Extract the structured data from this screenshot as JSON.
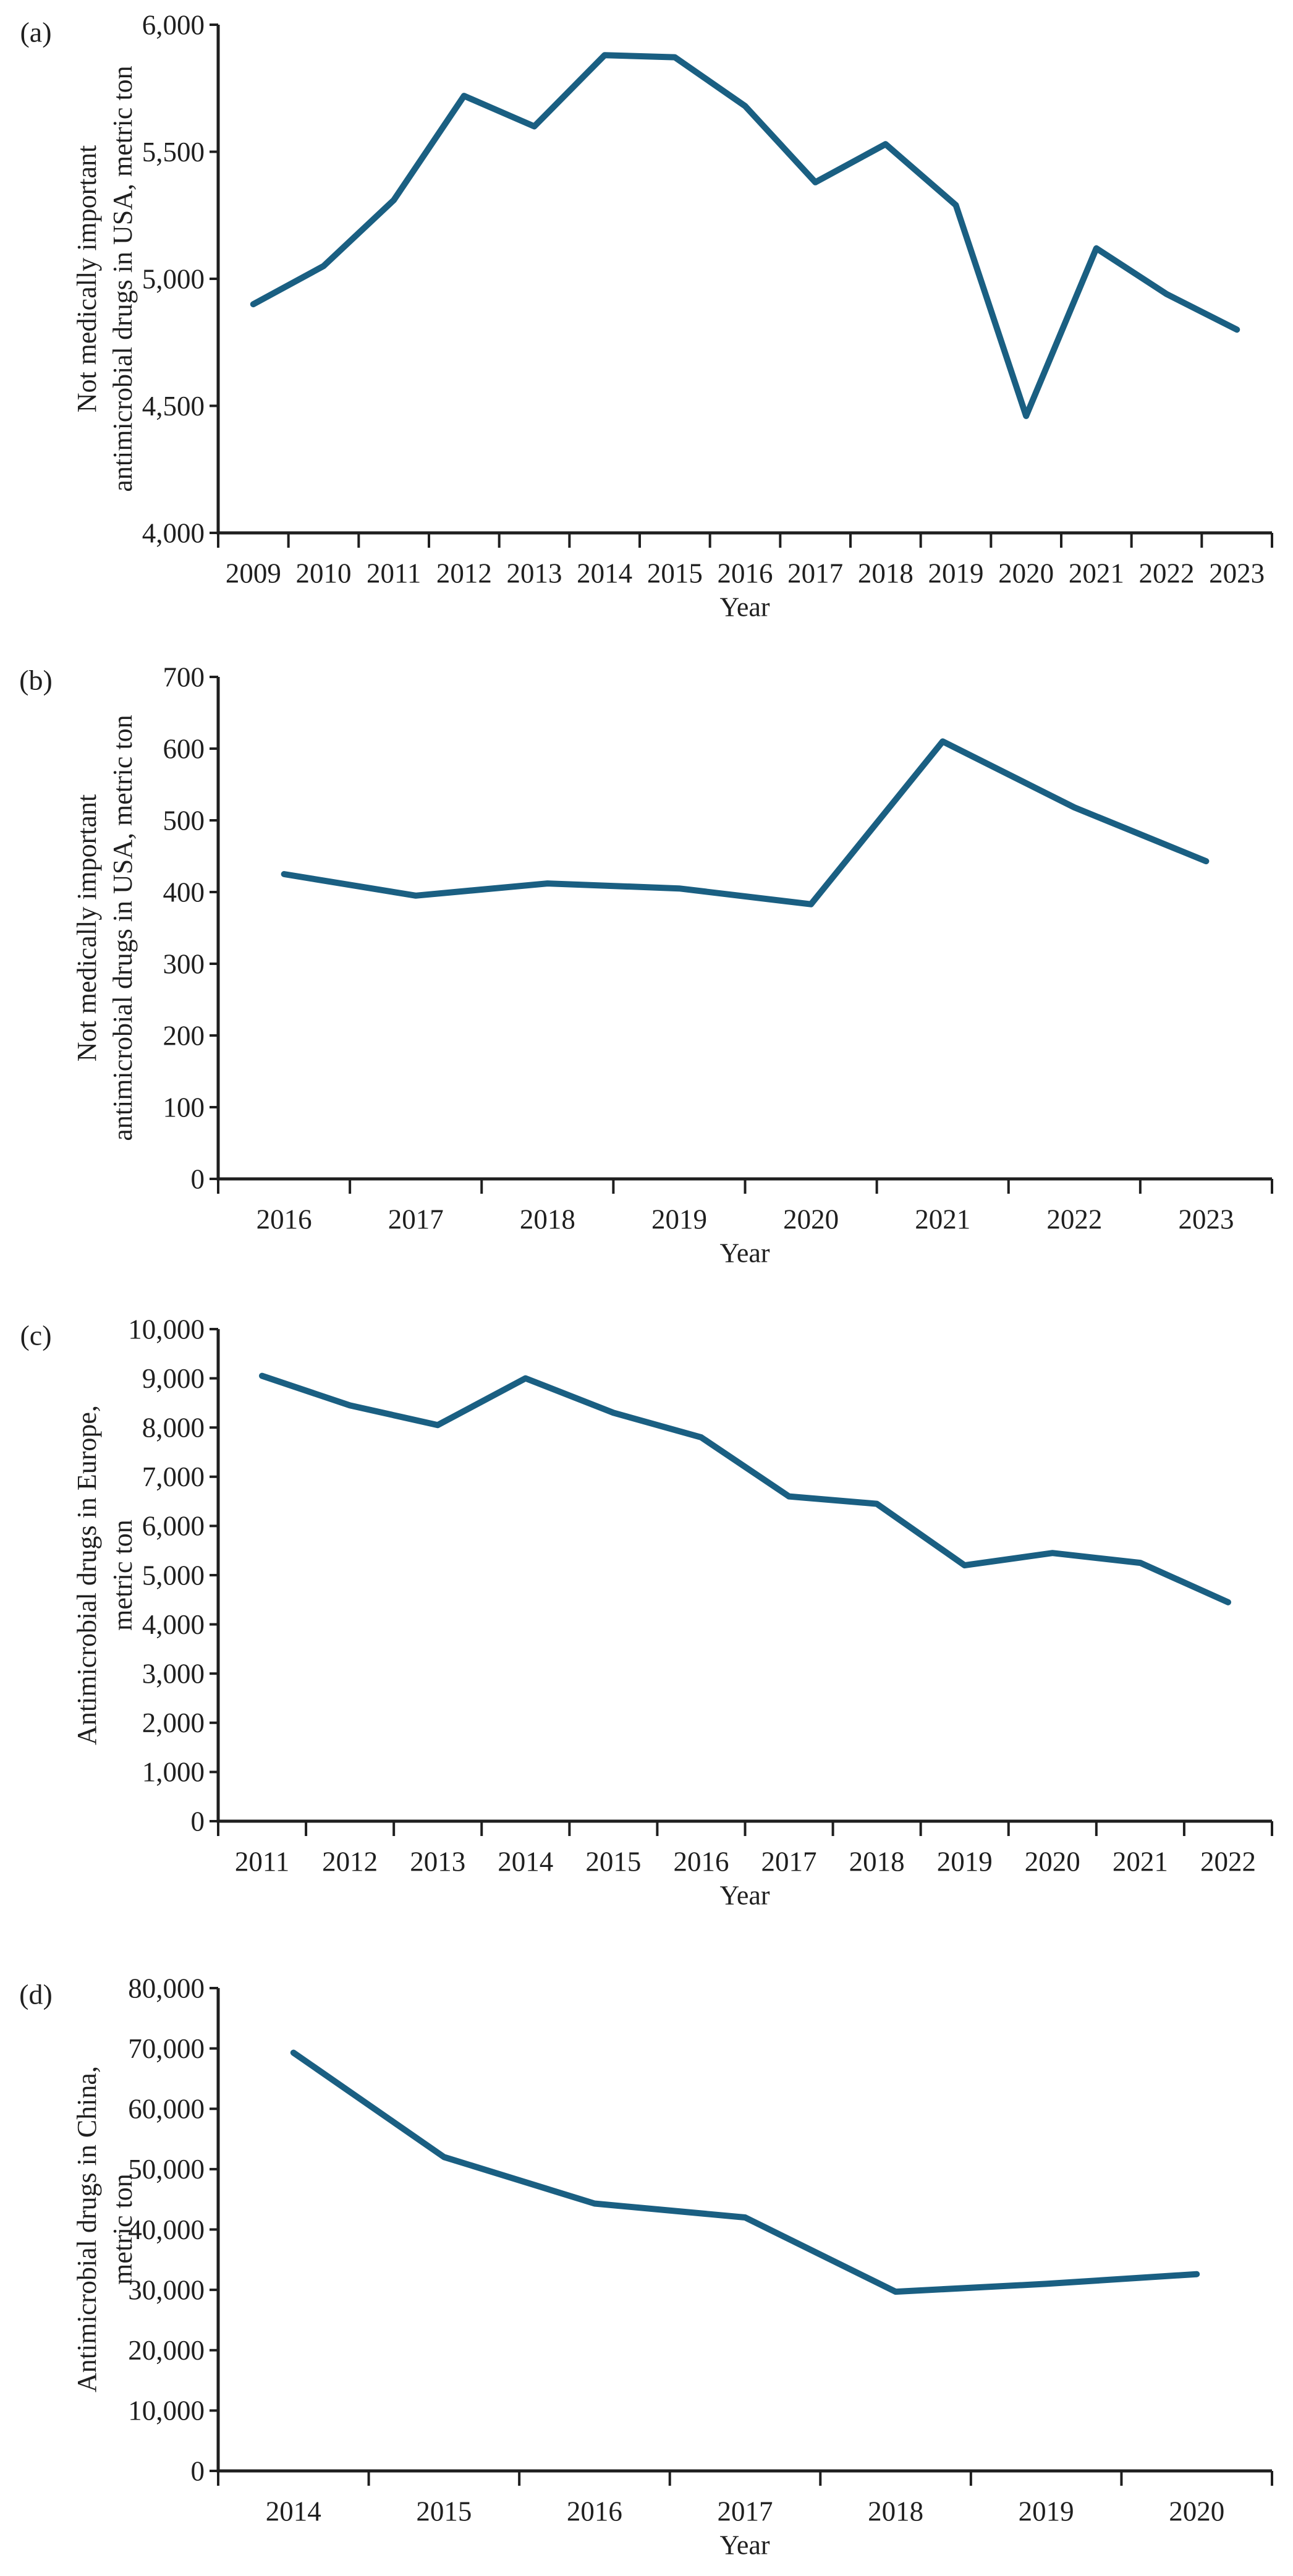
{
  "figure": {
    "background": "#ffffff",
    "line_color": "#1a5f82",
    "axis_color": "#1f1f1f"
  },
  "chart_data": [
    {
      "panel_id": "a",
      "panel_label": "(a)",
      "type": "line",
      "title": "",
      "ylabel_lines": [
        "Not medically important",
        "antimicrobial drugs in USA, metric ton"
      ],
      "xlabel": "Year",
      "x": [
        "2009",
        "2010",
        "2011",
        "2012",
        "2013",
        "2014",
        "2015",
        "2016",
        "2017",
        "2018",
        "2019",
        "2020",
        "2021",
        "2022",
        "2023"
      ],
      "values": [
        4900,
        5050,
        5310,
        5720,
        5600,
        5880,
        5872,
        5680,
        5380,
        5530,
        5290,
        4460,
        5120,
        4940,
        4800
      ],
      "ylim": [
        4000,
        6000
      ],
      "ytick_labels": [
        "4,000",
        "4,500",
        "5,000",
        "5,500",
        "6,000"
      ],
      "grid": false,
      "legend": null
    },
    {
      "panel_id": "b",
      "panel_label": "(b)",
      "type": "line",
      "title": "",
      "ylabel_lines": [
        "Not medically important",
        "antimicrobial drugs in USA, metric ton"
      ],
      "xlabel": "Year",
      "x": [
        "2016",
        "2017",
        "2018",
        "2019",
        "2020",
        "2021",
        "2022",
        "2023"
      ],
      "values": [
        425,
        395,
        412,
        405,
        383,
        610,
        518,
        443
      ],
      "ylim": [
        0,
        700
      ],
      "ytick_labels": [
        "0",
        "100",
        "200",
        "300",
        "400",
        "500",
        "600",
        "700"
      ],
      "grid": false,
      "legend": null
    },
    {
      "panel_id": "c",
      "panel_label": "(c)",
      "type": "line",
      "title": "",
      "ylabel_lines": [
        "Antimicrobial drugs in Europe,",
        "metric ton"
      ],
      "xlabel": "Year",
      "x": [
        "2011",
        "2012",
        "2013",
        "2014",
        "2015",
        "2016",
        "2017",
        "2018",
        "2019",
        "2020",
        "2021",
        "2022"
      ],
      "values": [
        9050,
        8450,
        8050,
        9000,
        8300,
        7800,
        6600,
        6450,
        5200,
        5450,
        5250,
        4450
      ],
      "ylim": [
        0,
        10000
      ],
      "ytick_labels": [
        "0",
        "1,000",
        "2,000",
        "3,000",
        "4,000",
        "5,000",
        "6,000",
        "7,000",
        "8,000",
        "9,000",
        "10,000"
      ],
      "grid": false,
      "legend": null
    },
    {
      "panel_id": "d",
      "panel_label": "(d)",
      "type": "line",
      "title": "",
      "ylabel_lines": [
        "Antimicrobial drugs in China,",
        "metric ton"
      ],
      "xlabel": "Year",
      "x": [
        "2014",
        "2015",
        "2016",
        "2017",
        "2018",
        "2019",
        "2020"
      ],
      "values": [
        69300,
        52000,
        44300,
        42000,
        29700,
        31000,
        32600
      ],
      "ylim": [
        0,
        80000
      ],
      "ytick_labels": [
        "0",
        "10,000",
        "20,000",
        "30,000",
        "40,000",
        "50,000",
        "60,000",
        "70,000",
        "80,000"
      ],
      "grid": false,
      "legend": null
    }
  ]
}
